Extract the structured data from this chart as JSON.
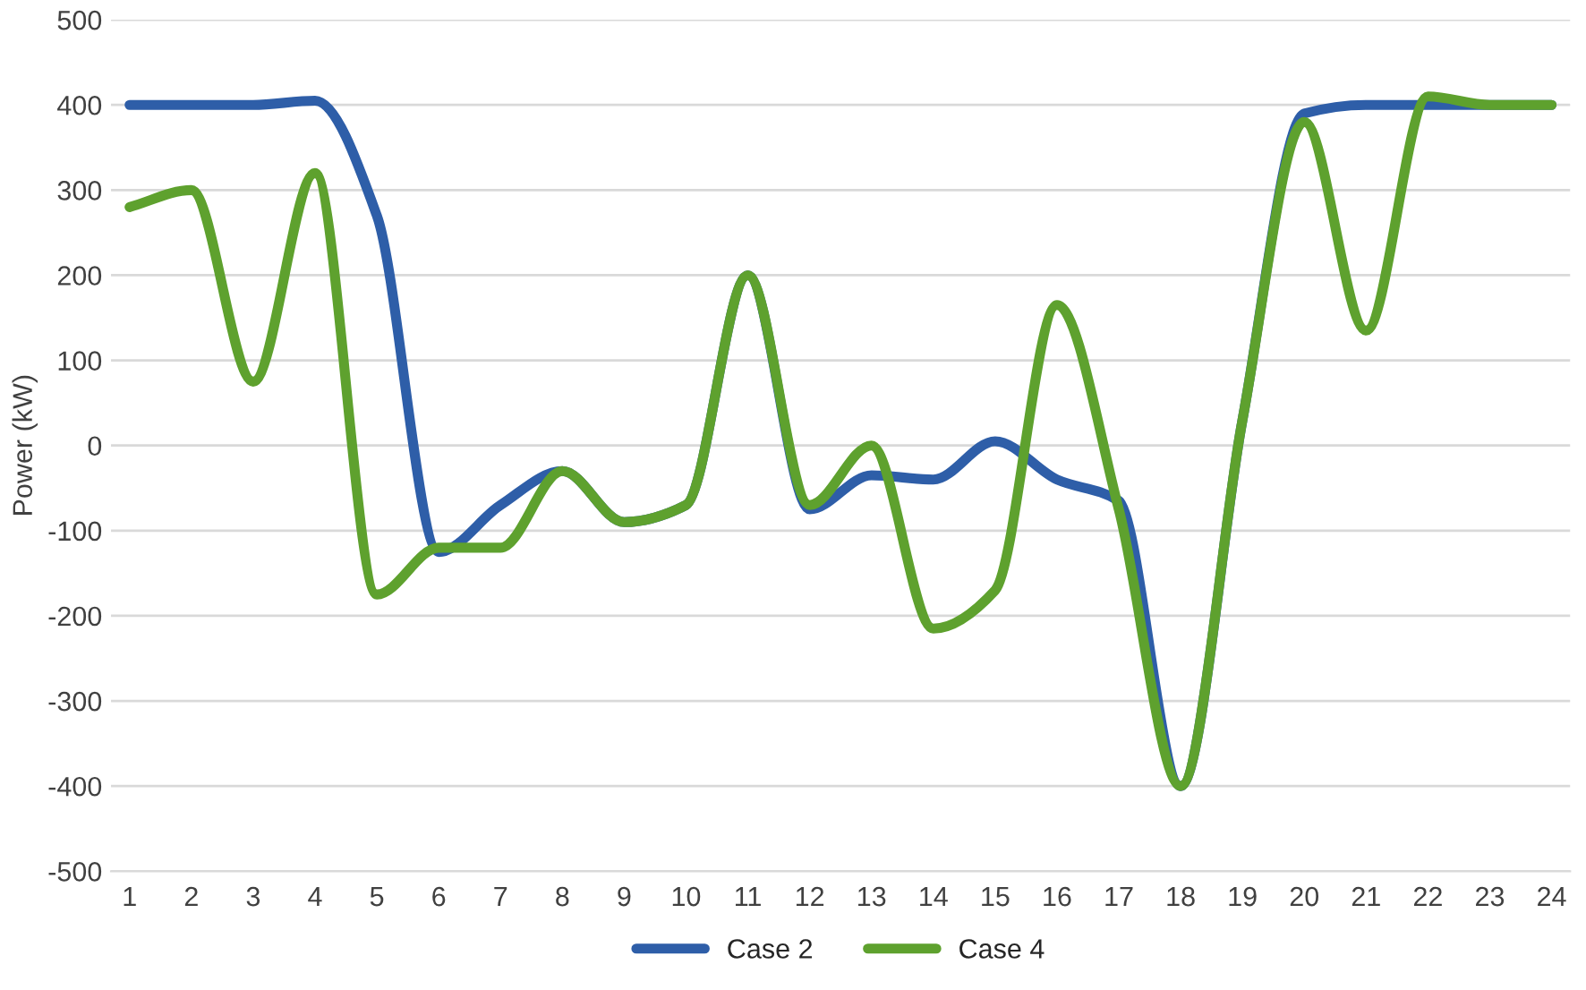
{
  "chart_data": {
    "type": "line",
    "ylabel": "Power (kW)",
    "categories": [
      "1",
      "2",
      "3",
      "4",
      "5",
      "6",
      "7",
      "8",
      "9",
      "10",
      "11",
      "12",
      "13",
      "14",
      "15",
      "16",
      "17",
      "18",
      "19",
      "20",
      "21",
      "22",
      "23",
      "24"
    ],
    "series": [
      {
        "name": "Case 2",
        "color": "#2e5ea8",
        "values": [
          400,
          400,
          400,
          405,
          270,
          -125,
          -70,
          -30,
          -90,
          -70,
          200,
          -75,
          -35,
          -40,
          5,
          -40,
          -65,
          -400,
          30,
          390,
          400,
          400,
          400,
          400
        ]
      },
      {
        "name": "Case 4",
        "color": "#5ea12e",
        "values": [
          280,
          300,
          75,
          320,
          -175,
          -120,
          -120,
          -30,
          -90,
          -70,
          200,
          -70,
          0,
          -215,
          -170,
          165,
          -75,
          -400,
          30,
          380,
          135,
          410,
          400,
          400
        ]
      }
    ],
    "ylim": [
      -500,
      500
    ],
    "yticks": [
      -500,
      -400,
      -300,
      -200,
      -100,
      0,
      100,
      200,
      300,
      400,
      500
    ],
    "grid": "y",
    "legend": "bottom",
    "marker": "none",
    "line_style": "solid"
  }
}
